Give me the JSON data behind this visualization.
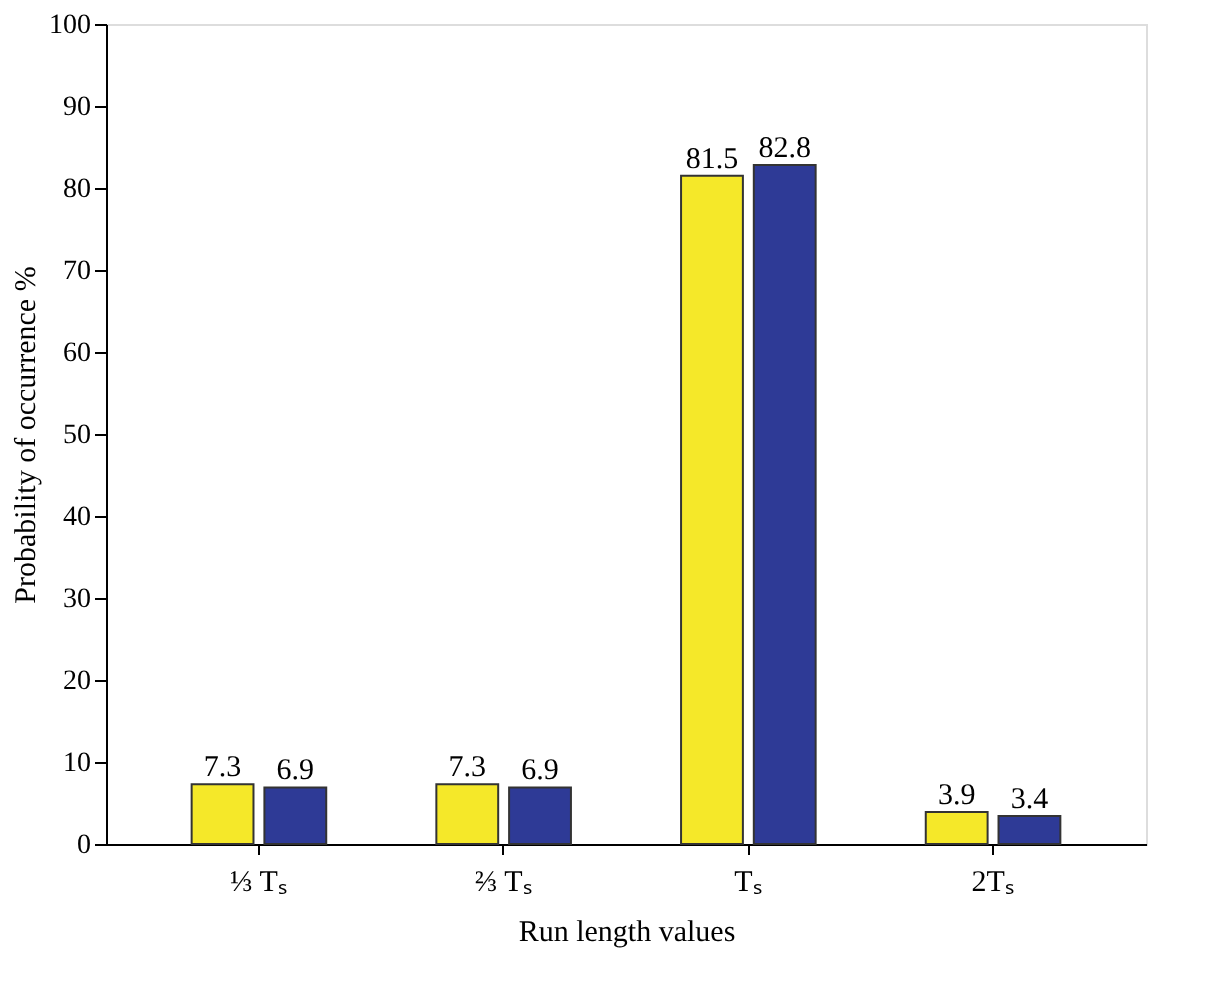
{
  "chart_data": {
    "type": "bar",
    "xlabel": "Run length values",
    "ylabel": "Probability of occurrence %",
    "categories": [
      "⅓ Tₛ",
      "⅔ Tₛ",
      "Tₛ",
      "2Tₛ"
    ],
    "series": [
      {
        "color": "#f5e829",
        "values": [
          7.3,
          7.3,
          81.5,
          3.9
        ]
      },
      {
        "color": "#2e3a96",
        "values": [
          6.9,
          6.9,
          82.8,
          3.4
        ]
      }
    ],
    "ylim": [
      0,
      100
    ],
    "yticks": [
      0,
      10,
      20,
      30,
      40,
      50,
      60,
      70,
      80,
      90,
      100
    ],
    "grid": false,
    "legend": false,
    "data_labels": true
  }
}
